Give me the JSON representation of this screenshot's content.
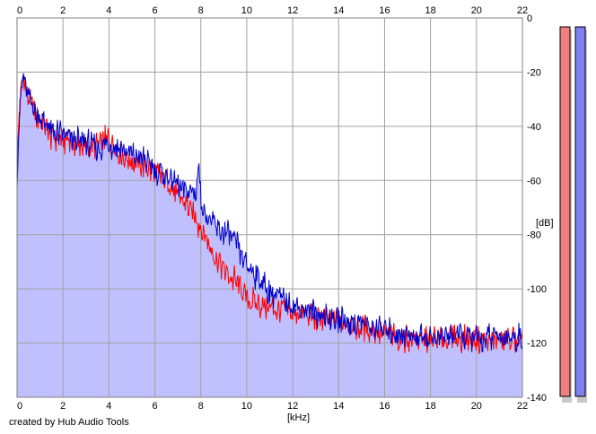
{
  "chart_data": {
    "type": "area",
    "xlabel": "[kHz]",
    "ylabel": "[dB]",
    "xlim": [
      0,
      22
    ],
    "ylim": [
      -140,
      0
    ],
    "x_ticks": [
      0,
      2,
      4,
      6,
      8,
      10,
      12,
      14,
      16,
      18,
      20,
      22
    ],
    "y_ticks": [
      0,
      -20,
      -40,
      -60,
      -80,
      -100,
      -120,
      -140
    ],
    "x_tick_labels": [
      "0",
      "2",
      "4",
      "6",
      "8",
      "10",
      "12",
      "14",
      "16",
      "18",
      "20",
      "22"
    ],
    "y_tick_labels": [
      "0",
      "-20",
      "-40",
      "-60",
      "-80",
      "-100",
      "-120",
      "-140"
    ],
    "grid": true,
    "series": [
      {
        "color": "#ff0000",
        "x": [
          0,
          0.1,
          0.2,
          0.3,
          0.4,
          0.6,
          0.8,
          1,
          1.5,
          2,
          2.5,
          3,
          3.5,
          4,
          4.5,
          5,
          5.5,
          6,
          6.5,
          7,
          7.5,
          7.8,
          8,
          8.3,
          8.6,
          9,
          9.5,
          10,
          10.5,
          11,
          11.5,
          12,
          13,
          14,
          15,
          16,
          17,
          18,
          19,
          20,
          21,
          22
        ],
        "y": [
          -55,
          -35,
          -25,
          -20,
          -28,
          -32,
          -35,
          -38,
          -44,
          -45,
          -46,
          -48,
          -47,
          -44,
          -50,
          -53,
          -55,
          -57,
          -60,
          -66,
          -70,
          -74,
          -78,
          -82,
          -88,
          -93,
          -97,
          -103,
          -106,
          -107,
          -108,
          -109,
          -111,
          -112,
          -114,
          -117,
          -118,
          -119,
          -118,
          -119,
          -119,
          -119
        ]
      },
      {
        "color": "#0000cc",
        "x": [
          0,
          0.1,
          0.2,
          0.3,
          0.4,
          0.6,
          0.8,
          1,
          1.5,
          2,
          2.5,
          3,
          3.5,
          4,
          4.5,
          5,
          5.5,
          6,
          6.5,
          7,
          7.5,
          7.8,
          7.9,
          8,
          8.2,
          8.6,
          9,
          9.5,
          10,
          10.5,
          11,
          11.5,
          12,
          13,
          14,
          15,
          16,
          17,
          18,
          19,
          20,
          21,
          22
        ],
        "y": [
          -58,
          -36,
          -26,
          -22,
          -27,
          -31,
          -34,
          -37,
          -42,
          -43,
          -45,
          -46,
          -48,
          -47,
          -48,
          -51,
          -52,
          -56,
          -58,
          -62,
          -64,
          -64,
          -54,
          -66,
          -73,
          -77,
          -79,
          -83,
          -91,
          -96,
          -101,
          -104,
          -106,
          -109,
          -111,
          -113,
          -115,
          -117,
          -118,
          -117,
          -118,
          -118,
          -118
        ]
      }
    ],
    "level_meters": [
      {
        "color": "#f08080"
      },
      {
        "color": "#8080f0"
      }
    ]
  },
  "footer": {
    "credit": "created by Hub Audio Tools"
  }
}
